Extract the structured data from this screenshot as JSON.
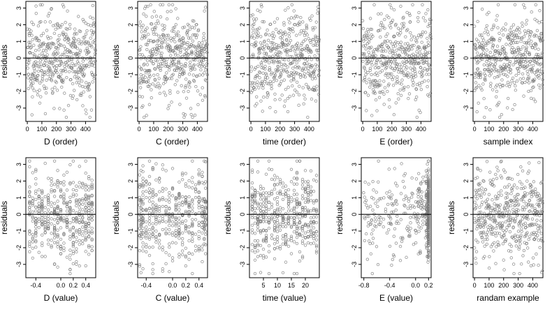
{
  "chart_data": [
    {
      "type": "scatter",
      "xlabel": "D (order)",
      "ylabel": "residuals",
      "xlim": [
        -10,
        470
      ],
      "ylim": [
        -3.8,
        3.4
      ],
      "xticks": [
        0,
        100,
        200,
        300,
        400
      ],
      "yticks": [
        -3,
        -2,
        -1,
        0,
        1,
        2,
        3
      ],
      "hline": 0,
      "grid": false,
      "points": {
        "generator": "order",
        "n": 470,
        "seed": 11
      }
    },
    {
      "type": "scatter",
      "xlabel": "C (order)",
      "ylabel": "residuals",
      "xlim": [
        -10,
        470
      ],
      "ylim": [
        -3.8,
        3.4
      ],
      "xticks": [
        0,
        100,
        200,
        300,
        400
      ],
      "yticks": [
        -3,
        -2,
        -1,
        0,
        1,
        2,
        3
      ],
      "hline": 0,
      "grid": false,
      "points": {
        "generator": "order",
        "n": 470,
        "seed": 23
      }
    },
    {
      "type": "scatter",
      "xlabel": "time (order)",
      "ylabel": "residuals",
      "xlim": [
        -10,
        470
      ],
      "ylim": [
        -3.8,
        3.4
      ],
      "xticks": [
        0,
        100,
        200,
        300,
        400
      ],
      "yticks": [
        -3,
        -2,
        -1,
        0,
        1,
        2,
        3
      ],
      "hline": 0,
      "grid": false,
      "points": {
        "generator": "order",
        "n": 470,
        "seed": 37
      }
    },
    {
      "type": "scatter",
      "xlabel": "E (order)",
      "ylabel": "residuals",
      "xlim": [
        -10,
        470
      ],
      "ylim": [
        -3.8,
        3.4
      ],
      "xticks": [
        0,
        100,
        200,
        300,
        400
      ],
      "yticks": [
        -3,
        -2,
        -1,
        0,
        1,
        2,
        3
      ],
      "hline": 0,
      "grid": false,
      "points": {
        "generator": "order",
        "n": 470,
        "seed": 41
      }
    },
    {
      "type": "scatter",
      "xlabel": "sample index",
      "ylabel": "residuals",
      "xlim": [
        -10,
        470
      ],
      "ylim": [
        -3.8,
        3.4
      ],
      "xticks": [
        0,
        100,
        200,
        300,
        400
      ],
      "yticks": [
        -3,
        -2,
        -1,
        0,
        1,
        2,
        3
      ],
      "hline": 0,
      "grid": false,
      "points": {
        "generator": "order",
        "n": 470,
        "seed": 53
      }
    },
    {
      "type": "scatter",
      "xlabel": "D (value)",
      "ylabel": "residuals",
      "xlim": [
        -0.56,
        0.56
      ],
      "ylim": [
        -3.8,
        3.4
      ],
      "xticks": [
        -0.4,
        0.0,
        0.2,
        0.4
      ],
      "xtick_labels": [
        "-0.4",
        "0.0",
        "0.2",
        "0.4"
      ],
      "yticks": [
        -3,
        -2,
        -1,
        0,
        1,
        2,
        3
      ],
      "hline": 0,
      "grid": false,
      "points": {
        "generator": "discrete",
        "n": 470,
        "seed": 61,
        "levels": [
          -0.5,
          -0.45,
          -0.4,
          -0.35,
          -0.3,
          -0.25,
          -0.2,
          -0.15,
          -0.1,
          -0.05,
          0.0,
          0.05,
          0.1,
          0.15,
          0.2,
          0.25,
          0.3,
          0.35,
          0.4,
          0.45,
          0.5
        ]
      }
    },
    {
      "type": "scatter",
      "xlabel": "C (value)",
      "ylabel": "residuals",
      "xlim": [
        -0.53,
        0.53
      ],
      "ylim": [
        -3.8,
        3.4
      ],
      "xticks": [
        -0.4,
        0.0,
        0.2,
        0.4
      ],
      "xtick_labels": [
        "-0.4",
        "0.0",
        "0.2",
        "0.4"
      ],
      "yticks": [
        -3,
        -2,
        -1,
        0,
        1,
        2,
        3
      ],
      "hline": 0,
      "grid": false,
      "points": {
        "generator": "discrete",
        "n": 470,
        "seed": 71,
        "levels": [
          -0.5,
          -0.48,
          -0.45,
          -0.4,
          -0.35,
          -0.3,
          -0.25,
          -0.2,
          -0.15,
          -0.1,
          -0.05,
          0.0,
          0.05,
          0.1,
          0.15,
          0.2,
          0.25,
          0.3,
          0.35,
          0.4,
          0.45,
          0.48,
          0.5
        ]
      }
    },
    {
      "type": "scatter",
      "xlabel": "time (value)",
      "ylabel": "residuals",
      "xlim": [
        0,
        25
      ],
      "ylim": [
        -3.8,
        3.4
      ],
      "xticks": [
        5,
        10,
        15,
        20
      ],
      "yticks": [
        -3,
        -2,
        -1,
        0,
        1,
        2,
        3
      ],
      "hline": 0,
      "grid": false,
      "points": {
        "generator": "discrete",
        "n": 470,
        "seed": 83,
        "levels": [
          1,
          2,
          3,
          4,
          5,
          6,
          7,
          8,
          9,
          10,
          11,
          12,
          13,
          14,
          15,
          16,
          17,
          18,
          19,
          20,
          21,
          22,
          23,
          24
        ]
      }
    },
    {
      "type": "scatter",
      "xlabel": "E (value)",
      "ylabel": "residuals",
      "xlim": [
        -0.84,
        0.24
      ],
      "ylim": [
        -3.8,
        3.4
      ],
      "xticks": [
        -0.8,
        -0.4,
        0.0,
        0.2
      ],
      "xtick_labels": [
        "-0.8",
        "-0.4",
        "0.0",
        "0.2"
      ],
      "yticks": [
        -3,
        -2,
        -1,
        0,
        1,
        2,
        3
      ],
      "hline": 0,
      "grid": false,
      "points": {
        "generator": "skewed",
        "n": 470,
        "seed": 97
      }
    },
    {
      "type": "scatter",
      "xlabel": "randam example",
      "ylabel": "residuals",
      "xlim": [
        -10,
        470
      ],
      "ylim": [
        -3.8,
        3.4
      ],
      "xticks": [
        0,
        100,
        200,
        300,
        400
      ],
      "yticks": [
        -3,
        -2,
        -1,
        0,
        1,
        2,
        3
      ],
      "hline": 0,
      "grid": false,
      "points": {
        "generator": "order",
        "n": 470,
        "seed": 101
      }
    }
  ]
}
